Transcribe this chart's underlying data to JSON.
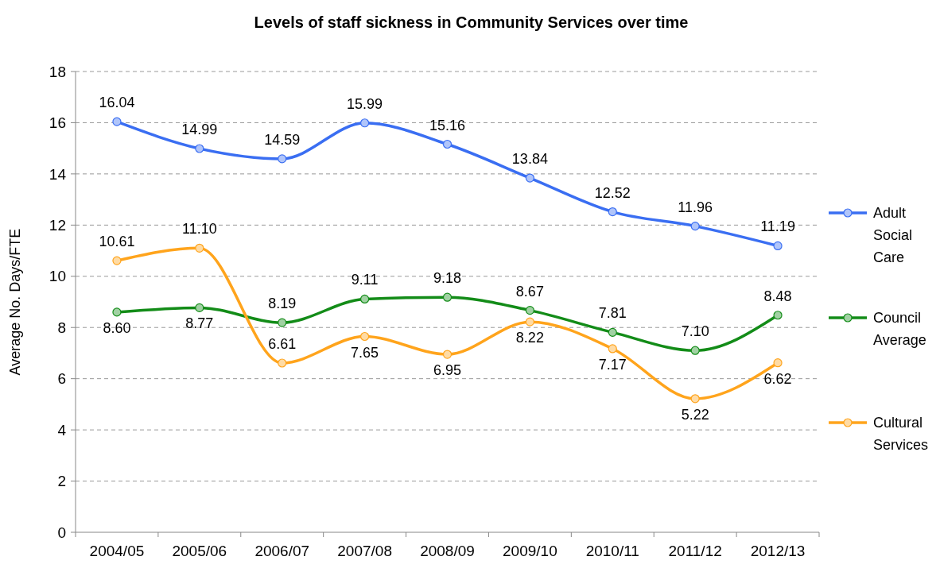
{
  "chart_data": {
    "type": "line",
    "title": "Levels of staff sickness in Community Services over time",
    "ylabel": "Average No. Days/FTE",
    "categories": [
      "2004/05",
      "2005/06",
      "2006/07",
      "2007/08",
      "2008/09",
      "2009/10",
      "2010/11",
      "2011/12",
      "2012/13"
    ],
    "series": [
      {
        "name": "Adult Social Care",
        "color": "#3a6ef2",
        "values": [
          16.04,
          14.99,
          14.59,
          15.99,
          15.16,
          13.84,
          12.52,
          11.96,
          11.19
        ],
        "value_labels": [
          "16.04",
          "14.99",
          "14.59",
          "15.99",
          "15.16",
          "13.84",
          "12.52",
          "11.96",
          "11.19"
        ]
      },
      {
        "name": "Council Average",
        "color": "#138c18",
        "values": [
          8.6,
          8.77,
          8.19,
          9.11,
          9.18,
          8.67,
          7.81,
          7.1,
          8.48
        ],
        "value_labels": [
          "8.60",
          "8.77",
          "8.19",
          "9.11",
          "9.18",
          "8.67",
          "7.81",
          "7.10",
          "8.48"
        ]
      },
      {
        "name": "Cultural Services",
        "color": "#ffa41c",
        "values": [
          10.61,
          11.1,
          6.61,
          7.65,
          6.95,
          8.22,
          7.17,
          5.22,
          6.62
        ],
        "value_labels": [
          "10.61",
          "11.10",
          "6.61",
          "7.65",
          "6.95",
          "8.22",
          "7.17",
          "5.22",
          "6.62"
        ]
      }
    ],
    "ylim": [
      0,
      18
    ],
    "yticks": [
      0,
      2,
      4,
      6,
      8,
      10,
      12,
      14,
      16,
      18
    ],
    "grid": "y",
    "legend": "right",
    "marker": "circle",
    "line_style": "solid"
  }
}
